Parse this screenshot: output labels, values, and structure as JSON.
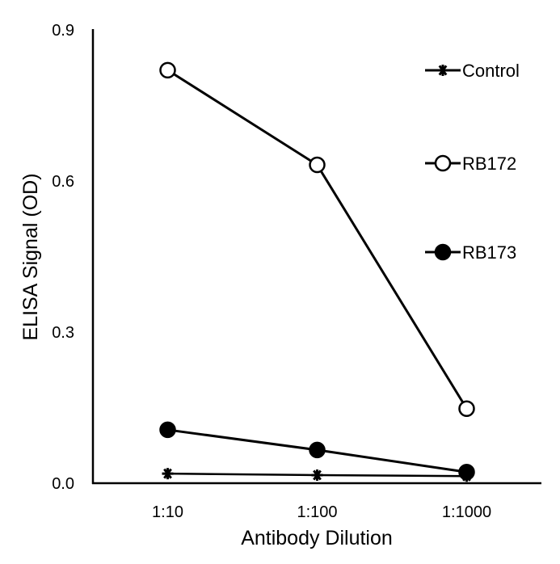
{
  "chart_data": {
    "type": "line",
    "title": "",
    "xlabel": "Antibody Dilution",
    "ylabel": "ELISA Signal (OD)",
    "categories": [
      "1:10",
      "1:100",
      "1:1000"
    ],
    "ylim": [
      0,
      0.9
    ],
    "yticks": [
      "0.0",
      "0.3",
      "0.6",
      "0.9"
    ],
    "grid": false,
    "legend_position": "top-right",
    "series": [
      {
        "name": "Control",
        "marker": "asterisk",
        "values": [
          0.019,
          0.016,
          0.014
        ]
      },
      {
        "name": "RB172",
        "marker": "open-circle",
        "values": [
          0.82,
          0.632,
          0.148
        ]
      },
      {
        "name": "RB173",
        "marker": "filled-circle",
        "values": [
          0.106,
          0.066,
          0.022
        ]
      }
    ]
  }
}
